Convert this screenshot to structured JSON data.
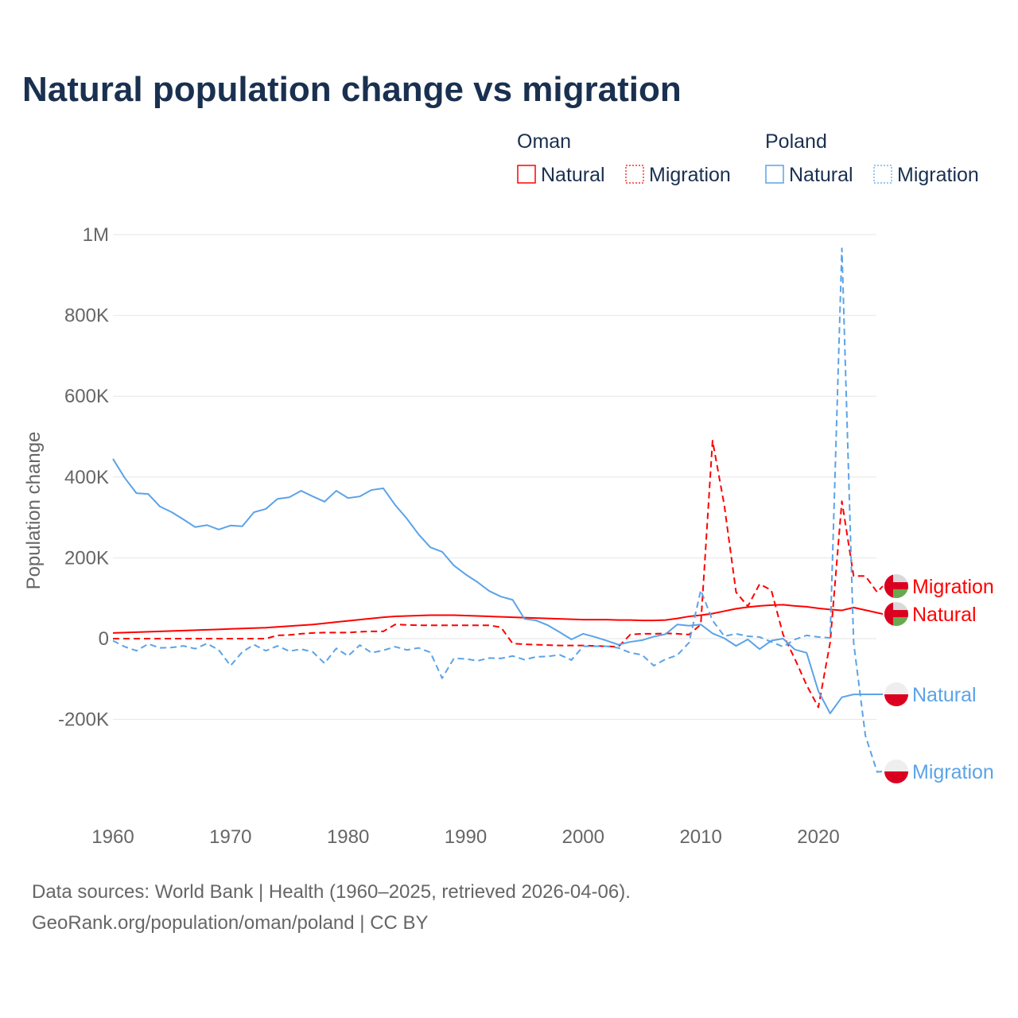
{
  "title": "Natural population change vs migration",
  "footer": {
    "line1": "Data sources: World Bank | Health (1960–2025, retrieved 2026-04-06).",
    "line2": "GeoRank.org/population/oman/poland | CC BY"
  },
  "colors": {
    "oman": "#ff0000",
    "poland": "#5ba3e8",
    "grid": "#e6e6e6",
    "axis_text": "#666666",
    "title": "#1a3050"
  },
  "chart_data": {
    "type": "line",
    "title": "Natural population change vs migration",
    "xlabel": "",
    "ylabel": "Population change",
    "xlim": [
      1960,
      2025
    ],
    "ylim": [
      -250000,
      1000000
    ],
    "grid": true,
    "x_ticks": [
      1960,
      1970,
      1980,
      1990,
      2000,
      2010,
      2020
    ],
    "x_tick_labels": [
      "1960",
      "1970",
      "1980",
      "1990",
      "2000",
      "2010",
      "2020"
    ],
    "y_ticks": [
      1000000,
      800000,
      600000,
      400000,
      200000,
      0,
      -200000
    ],
    "y_tick_labels": [
      "1M",
      "800K",
      "600K",
      "400K",
      "200K",
      "0",
      "-200K"
    ],
    "legend": {
      "placement": "top-right",
      "groups": [
        {
          "country": "Oman",
          "items": [
            "Natural",
            "Migration"
          ]
        },
        {
          "country": "Poland",
          "items": [
            "Natural",
            "Migration"
          ]
        }
      ]
    },
    "series": [
      {
        "name": "Natural",
        "country": "Oman",
        "color": "#ff0000",
        "style": "solid",
        "end_label": "Natural",
        "start_year": 1960,
        "values": [
          14,
          15,
          16,
          17,
          18,
          19,
          20,
          21,
          22,
          23,
          24,
          25,
          26,
          27,
          29,
          31,
          33,
          35,
          38,
          41,
          44,
          47,
          50,
          53,
          55,
          56,
          57,
          58,
          58,
          58,
          57,
          56,
          55,
          54,
          53,
          52,
          51,
          50,
          49,
          48,
          47,
          47,
          47,
          46,
          46,
          45,
          45,
          46,
          50,
          55,
          58,
          62,
          68,
          74,
          78,
          81,
          83,
          84,
          81,
          79,
          75,
          72,
          70,
          77
        ]
      },
      {
        "name": "Migration",
        "country": "Oman",
        "color": "#ff0000",
        "style": "dashed",
        "end_label": "Migration",
        "start_year": 1960,
        "values": [
          0,
          0,
          0,
          0,
          0,
          0,
          0,
          0,
          0,
          0,
          0,
          0,
          0,
          0,
          8,
          9,
          12,
          14,
          15,
          15,
          15,
          17,
          18,
          18,
          35,
          34,
          33,
          33,
          33,
          33,
          33,
          33,
          33,
          28,
          -12,
          -14,
          -15,
          -16,
          -17,
          -17,
          -17,
          -18,
          -19,
          -20,
          10,
          12,
          12,
          13,
          12,
          10,
          35,
          490,
          330,
          115,
          80,
          135,
          120,
          10,
          -50,
          -115,
          -170,
          -10,
          340,
          155,
          155,
          115
        ]
      },
      {
        "name": "Natural",
        "country": "Poland",
        "color": "#5ba3e8",
        "style": "solid",
        "end_label": "Natural",
        "start_year": 1960,
        "values": [
          445,
          398,
          360,
          358,
          327,
          313,
          295,
          276,
          281,
          270,
          280,
          278,
          313,
          321,
          346,
          350,
          366,
          352,
          339,
          366,
          348,
          352,
          368,
          372,
          331,
          297,
          258,
          226,
          215,
          181,
          159,
          140,
          118,
          104,
          96,
          49,
          45,
          33,
          16,
          -2,
          12,
          4,
          -5,
          -15,
          -8,
          -4,
          5,
          11,
          35,
          32,
          35,
          13,
          1,
          -18,
          -2,
          -26,
          -5,
          0,
          -27,
          -35,
          -130,
          -185,
          -145,
          -138
        ]
      },
      {
        "name": "Migration",
        "country": "Poland",
        "color": "#5ba3e8",
        "style": "dashed",
        "end_label": "Migration",
        "start_year": 1960,
        "values": [
          -5,
          -20,
          -30,
          -13,
          -23,
          -22,
          -18,
          -25,
          -12,
          -28,
          -67,
          -33,
          -15,
          -30,
          -18,
          -31,
          -26,
          -33,
          -61,
          -24,
          -43,
          -16,
          -35,
          -29,
          -20,
          -28,
          -23,
          -34,
          -98,
          -49,
          -50,
          -55,
          -48,
          -49,
          -43,
          -52,
          -45,
          -44,
          -40,
          -53,
          -19,
          -19,
          -19,
          -23,
          -35,
          -40,
          -67,
          -51,
          -41,
          -10,
          120,
          45,
          6,
          12,
          6,
          4,
          -8,
          -20,
          -2,
          8,
          4,
          2,
          966,
          -10,
          -240,
          -330
        ]
      }
    ],
    "value_unit": "thousands"
  }
}
